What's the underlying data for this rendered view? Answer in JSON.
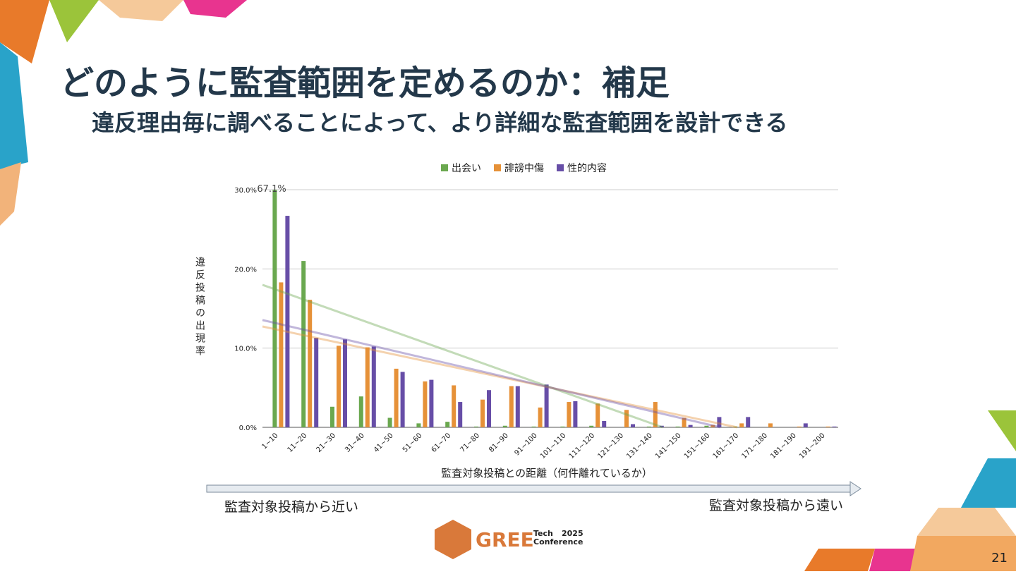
{
  "slide": {
    "title": "どのように監査範囲を定めるのか：補足",
    "subtitle": "違反理由毎に調べることによって、より詳細な監査範囲を設計できる",
    "near_label": "監査対象投稿から近い",
    "far_label": "監査対象投稿から遠い",
    "logo": {
      "brand": "GREE",
      "tech": "Tech",
      "year": "2025",
      "conference": "Conference"
    },
    "page_number": "21"
  },
  "chart_data": {
    "type": "bar",
    "x_label": "監査対象投稿との距離（何件離れているか）",
    "y_label": "違反投稿の出現率",
    "categories": [
      "1~10",
      "11~20",
      "21~30",
      "31~40",
      "41~50",
      "51~60",
      "61~70",
      "71~80",
      "81~90",
      "91~100",
      "101~110",
      "111~120",
      "121~130",
      "131~140",
      "141~150",
      "151~160",
      "161~170",
      "171~180",
      "181~190",
      "191~200"
    ],
    "series": [
      {
        "name": "出会い",
        "color": "#6aa84f",
        "values": [
          67.1,
          21.0,
          2.6,
          3.9,
          1.2,
          0.5,
          0.7,
          0.1,
          0.2,
          0.1,
          0.1,
          0.2,
          0,
          0.1,
          0.1,
          0.2,
          0.1,
          0,
          0,
          0
        ],
        "value_labels": [
          "67.1%",
          null,
          null,
          null,
          null,
          null,
          null,
          null,
          null,
          null,
          null,
          null,
          null,
          null,
          null,
          null,
          null,
          null,
          null,
          null
        ]
      },
      {
        "name": "誹謗中傷",
        "color": "#e69138",
        "values": [
          18.3,
          16.1,
          10.3,
          10.1,
          7.4,
          5.8,
          5.3,
          3.5,
          5.2,
          2.5,
          3.2,
          3.0,
          2.2,
          3.2,
          1.2,
          0.3,
          0.5,
          0.5,
          0.1,
          0.1
        ]
      },
      {
        "name": "性的内容",
        "color": "#674ea7",
        "values": [
          26.7,
          11.3,
          11.1,
          10.2,
          7.0,
          6.0,
          3.2,
          4.7,
          5.2,
          5.4,
          3.3,
          0.8,
          0.4,
          0.2,
          0.3,
          1.3,
          1.3,
          0,
          0.5,
          0.1
        ]
      }
    ],
    "ylim": [
      0,
      30
    ],
    "yticks": [
      {
        "value": 0,
        "label": "0.0%"
      },
      {
        "value": 10,
        "label": "10.0%"
      },
      {
        "value": 20,
        "label": "20.0%"
      },
      {
        "value": 30,
        "label": "30.0%"
      }
    ],
    "grid": true,
    "legend": "top",
    "trendline": true
  }
}
